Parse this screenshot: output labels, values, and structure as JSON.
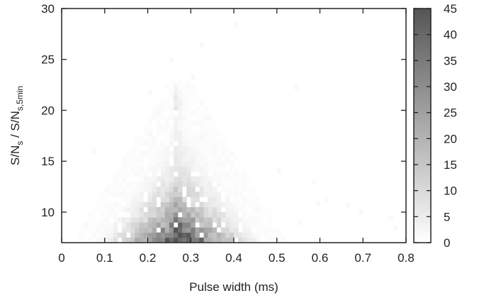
{
  "chart_data": {
    "type": "heatmap",
    "xlabel": "Pulse width (ms)",
    "ylabel": {
      "main": "S/N",
      "sub1": "s",
      "sep": " / S/N",
      "sub2": "s,5min"
    },
    "xlim": [
      0,
      0.8
    ],
    "ylim": [
      7,
      30
    ],
    "x_ticks": [
      "0",
      "0.1",
      "0.2",
      "0.3",
      "0.4",
      "0.5",
      "0.6",
      "0.7",
      "0.8"
    ],
    "y_ticks": [
      "10",
      "15",
      "20",
      "25",
      "30"
    ],
    "colorbar": {
      "range": [
        0,
        45
      ],
      "ticks": [
        "0",
        "5",
        "10",
        "15",
        "20",
        "25",
        "30",
        "35",
        "40",
        "45"
      ],
      "low_color": "#ffffff",
      "high_color": "#555555"
    },
    "x_bin_width": 0.01,
    "y_bin_width": 0.5,
    "distribution": {
      "peak_x": 0.26,
      "peak_y": 7.5,
      "peak_count": 42,
      "upper_edge_at_peak": 21,
      "half_width_at_bottom": 0.2,
      "isolated_cells": [
        {
          "x": 0.4,
          "y": 28.2
        },
        {
          "x": 0.32,
          "y": 26.2
        },
        {
          "x": 0.25,
          "y": 24.7
        },
        {
          "x": 0.3,
          "y": 23.0
        },
        {
          "x": 0.54,
          "y": 22.0
        },
        {
          "x": 0.2,
          "y": 21.5
        },
        {
          "x": 0.07,
          "y": 15.7
        },
        {
          "x": 0.5,
          "y": 13.8
        },
        {
          "x": 0.58,
          "y": 12.7
        },
        {
          "x": 0.61,
          "y": 11.0
        },
        {
          "x": 0.59,
          "y": 10.6
        },
        {
          "x": 0.66,
          "y": 10.4
        },
        {
          "x": 0.69,
          "y": 9.8
        },
        {
          "x": 0.76,
          "y": 9.2
        },
        {
          "x": 0.55,
          "y": 8.7
        },
        {
          "x": 0.77,
          "y": 8.2
        }
      ]
    }
  }
}
